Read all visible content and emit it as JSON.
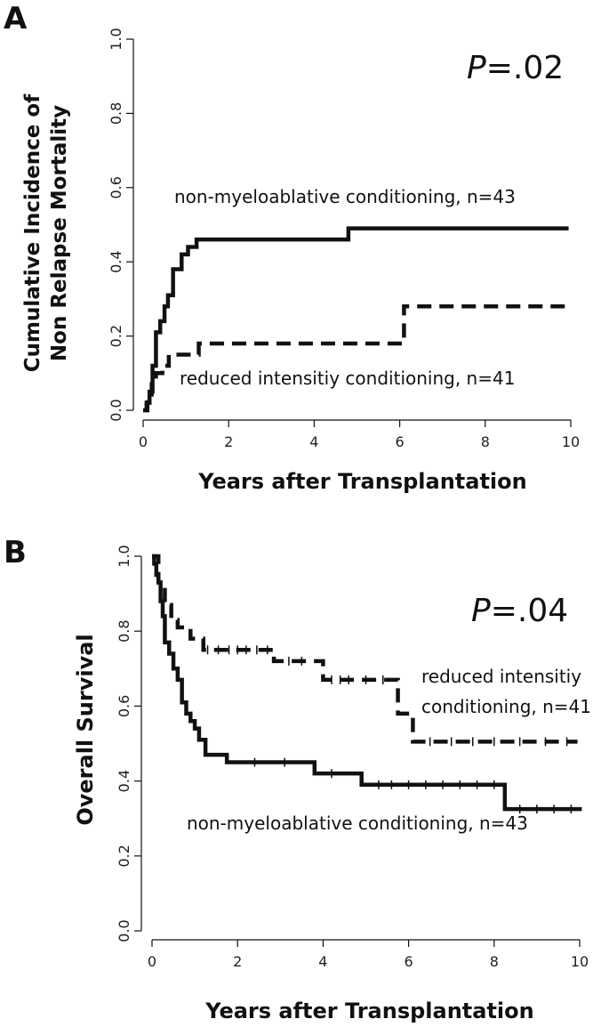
{
  "chart_data": [
    {
      "panel": "A",
      "type": "line",
      "step": true,
      "ylabel": [
        "Cumulative Incidence of",
        "Non Relapse Mortality"
      ],
      "xlabel": "Years after Transplantation",
      "pvalue_italic": "P",
      "pvalue_rest": "=.02",
      "xlim": [
        0,
        10
      ],
      "ylim": [
        0,
        1
      ],
      "xticks": [
        0,
        2,
        4,
        6,
        8,
        10
      ],
      "yticks": [
        0.0,
        0.2,
        0.4,
        0.6,
        0.8,
        1.0
      ],
      "xtick_labels": [
        "0",
        "2",
        "4",
        "6",
        "8",
        "10"
      ],
      "ytick_labels": [
        "0.0",
        "0.2",
        "0.4",
        "0.6",
        "0.8",
        "1.0"
      ],
      "series": [
        {
          "name": "non-myeloablative conditioning, n=43",
          "label": "non-myeloablative conditioning, n=43",
          "style": "solid",
          "x": [
            0,
            0.08,
            0.15,
            0.22,
            0.3,
            0.4,
            0.5,
            0.58,
            0.7,
            0.9,
            1.05,
            1.25,
            4.8,
            9.95
          ],
          "y": [
            0,
            0.02,
            0.05,
            0.12,
            0.21,
            0.24,
            0.28,
            0.31,
            0.38,
            0.42,
            0.44,
            0.46,
            0.49,
            0.49
          ]
        },
        {
          "name": "reduced intensitiy conditioning, n=41",
          "label": "reduced intensitiy conditioning, n=41",
          "style": "dashed",
          "x": [
            0,
            0.1,
            0.2,
            0.3,
            0.45,
            0.6,
            0.8,
            1.3,
            6.1,
            9.95
          ],
          "y": [
            0,
            0.03,
            0.07,
            0.1,
            0.12,
            0.15,
            0.15,
            0.18,
            0.28,
            0.28
          ]
        }
      ]
    },
    {
      "panel": "B",
      "type": "line",
      "step": true,
      "ylabel": [
        "Overall Survival"
      ],
      "xlabel": "Years after Transplantation",
      "pvalue_italic": "P",
      "pvalue_rest": "=.04",
      "xlim": [
        0,
        10
      ],
      "ylim": [
        0,
        1
      ],
      "xticks": [
        0,
        2,
        4,
        6,
        8,
        10
      ],
      "yticks": [
        0.0,
        0.2,
        0.4,
        0.6,
        0.8,
        1.0
      ],
      "xtick_labels": [
        "0",
        "2",
        "4",
        "6",
        "8",
        "10"
      ],
      "ytick_labels": [
        "0.0",
        "0.2",
        "0.4",
        "0.6",
        "0.8",
        "1.0"
      ],
      "series": [
        {
          "name": "non-myeloablative conditioning, n=43",
          "label": "non-myeloablative conditioning, n=43",
          "style": "solid",
          "x": [
            0,
            0.05,
            0.1,
            0.15,
            0.2,
            0.25,
            0.3,
            0.4,
            0.5,
            0.6,
            0.7,
            0.8,
            0.9,
            1.0,
            1.1,
            1.25,
            1.75,
            3.8,
            4.9,
            8.25,
            10.05
          ],
          "y": [
            1.0,
            0.98,
            0.95,
            0.93,
            0.88,
            0.84,
            0.77,
            0.74,
            0.7,
            0.67,
            0.61,
            0.58,
            0.56,
            0.54,
            0.51,
            0.47,
            0.45,
            0.42,
            0.39,
            0.325,
            0.325
          ],
          "censor_x": [
            2.4,
            3.1,
            4.2,
            5.3,
            5.6,
            6.0,
            6.4,
            6.8,
            7.2,
            7.6,
            8.0,
            8.6,
            9.0,
            9.4,
            9.8
          ],
          "censor_y": [
            0.45,
            0.45,
            0.42,
            0.39,
            0.39,
            0.39,
            0.39,
            0.39,
            0.39,
            0.39,
            0.39,
            0.325,
            0.325,
            0.325,
            0.325
          ]
        },
        {
          "name": "reduced intensitiy conditioning, n=41",
          "label_lines": [
            "reduced intensitiy",
            "conditioning, n=41"
          ],
          "style": "dashed",
          "x": [
            0,
            0.15,
            0.3,
            0.45,
            0.6,
            0.9,
            1.2,
            2.85,
            4.0,
            5.75,
            6.1,
            9.95
          ],
          "y": [
            1.0,
            0.93,
            0.87,
            0.83,
            0.81,
            0.78,
            0.75,
            0.72,
            0.67,
            0.58,
            0.505,
            0.505
          ],
          "censor_x": [
            1.3,
            1.55,
            1.8,
            2.0,
            2.2,
            2.45,
            2.7,
            3.2,
            3.5,
            4.2,
            4.4,
            4.6,
            5.0,
            5.4,
            6.5,
            7.0,
            7.5,
            8.0,
            8.6,
            9.2,
            9.7
          ],
          "censor_y": [
            0.75,
            0.75,
            0.75,
            0.75,
            0.75,
            0.75,
            0.75,
            0.72,
            0.72,
            0.67,
            0.67,
            0.67,
            0.67,
            0.67,
            0.505,
            0.505,
            0.505,
            0.505,
            0.505,
            0.505,
            0.505
          ]
        }
      ]
    }
  ]
}
